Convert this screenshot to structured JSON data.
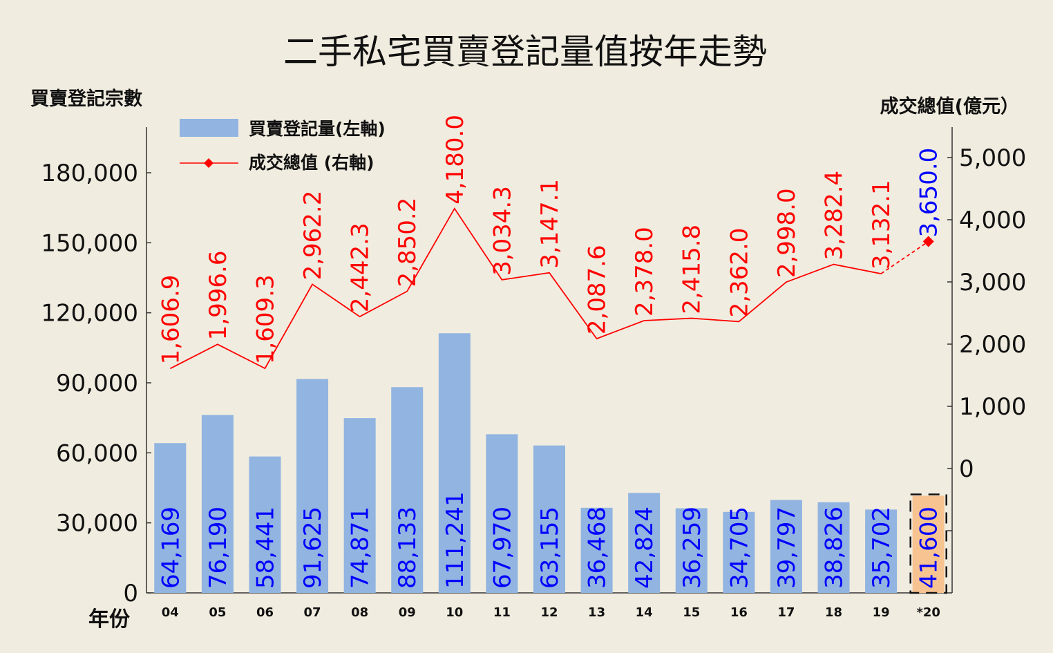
{
  "chart_data": {
    "type": "bar",
    "title": "二手私宅買賣登記量值按年走勢",
    "xlabel": "年份",
    "ylabel": "買賣登記宗數",
    "y2label": "成交總值(億元）",
    "categories": [
      "04",
      "05",
      "06",
      "07",
      "08",
      "09",
      "10",
      "11",
      "12",
      "13",
      "14",
      "15",
      "16",
      "17",
      "18",
      "19",
      "*20"
    ],
    "series": [
      {
        "name": "買賣登記量(左軸)",
        "type": "bar",
        "axis": "left",
        "color": "#91b4e1",
        "highlight_color": "#f7c391",
        "highlight_index": 16,
        "values": [
          64169,
          76190,
          58441,
          91625,
          74871,
          88133,
          111241,
          67970,
          63155,
          36468,
          42824,
          36259,
          34705,
          39797,
          38826,
          35702,
          41600
        ],
        "labels": [
          "64,169",
          "76,190",
          "58,441",
          "91,625",
          "74,871",
          "88,133",
          "111,241",
          "67,970",
          "63,155",
          "36,468",
          "42,824",
          "36,259",
          "34,705",
          "39,797",
          "38,826",
          "35,702",
          "41,600"
        ],
        "label_color": "#0000ff"
      },
      {
        "name": "成交總值 (右軸)",
        "type": "line",
        "axis": "right",
        "color": "#ff0000",
        "values": [
          1606.9,
          1996.6,
          1609.3,
          2962.2,
          2442.3,
          2850.2,
          4180.0,
          3034.3,
          3147.1,
          2087.6,
          2378.0,
          2415.8,
          2362.0,
          2998.0,
          3282.4,
          3132.1,
          3650.0
        ],
        "labels": [
          "1,606.9",
          "1,996.6",
          "1,609.3",
          "2,962.2",
          "2,442.3",
          "2,850.2",
          "4,180.0",
          "3,034.3",
          "3,147.1",
          "2,087.6",
          "2,378.0",
          "2,415.8",
          "2,362.0",
          "2,998.0",
          "3,282.4",
          "3,132.1",
          "3,650.0"
        ],
        "label_color": "#ff0000",
        "last_label_color": "#0000ff",
        "last_segment_dashed": true
      }
    ],
    "left_axis": {
      "range": [
        0,
        190000
      ],
      "ticks": [
        0,
        30000,
        60000,
        90000,
        120000,
        150000,
        180000
      ],
      "tick_labels": [
        "0",
        "30,000",
        "60,000",
        "90,000",
        "120,000",
        "150,000",
        "180,000"
      ]
    },
    "right_axis": {
      "range": [
        -2000,
        5500
      ],
      "ticks": [
        0,
        1000,
        2000,
        3000,
        4000,
        5000
      ],
      "tick_labels": [
        "0",
        "1,000",
        "2,000",
        "3,000",
        "4,000",
        "5,000"
      ]
    },
    "legend_placement": "top-left",
    "grid": false
  }
}
